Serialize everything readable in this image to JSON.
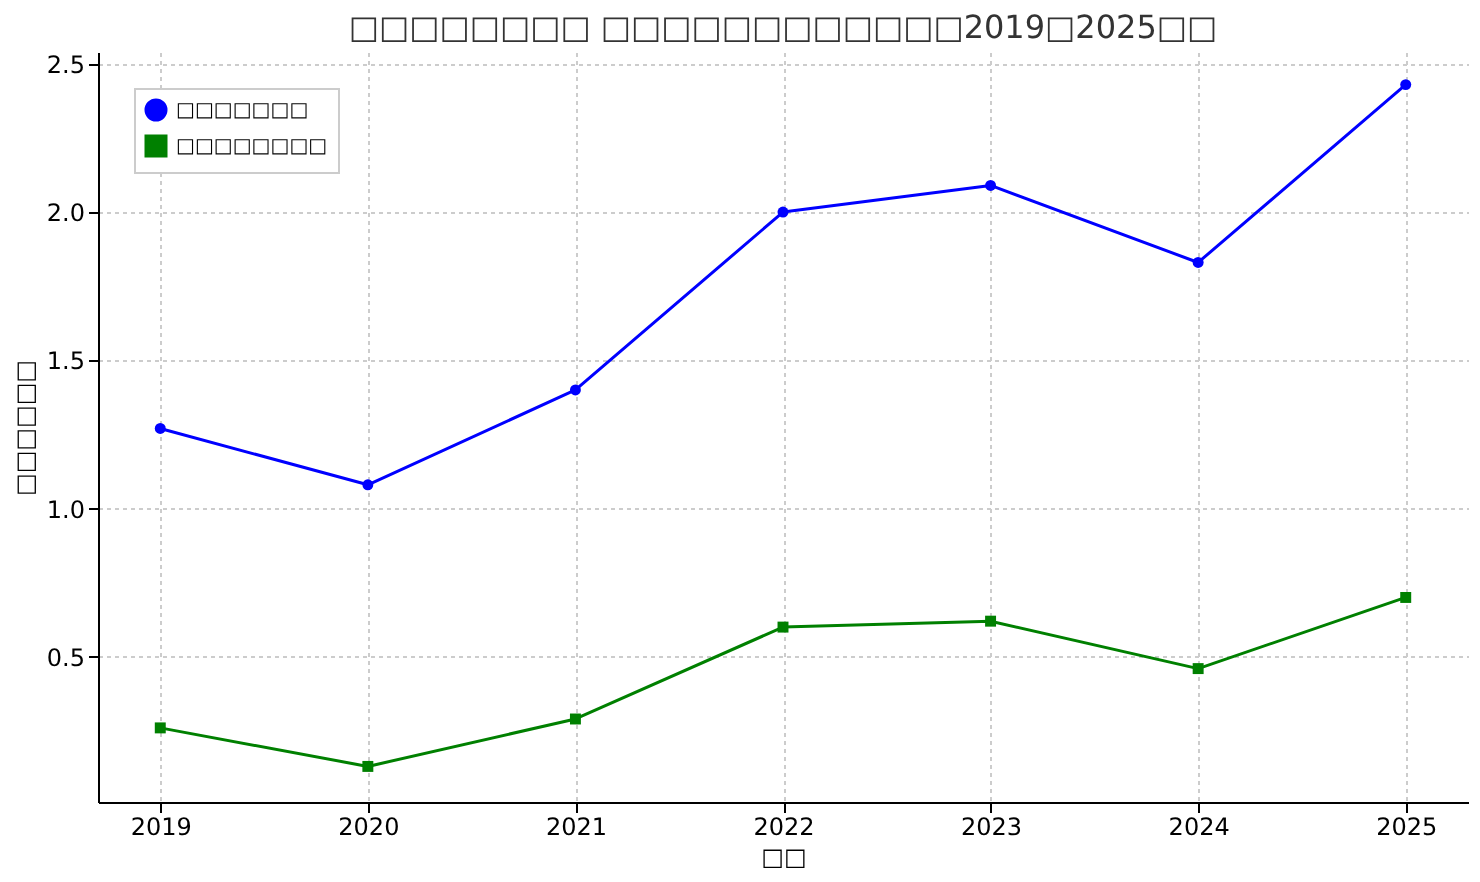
{
  "chart_data": {
    "type": "line",
    "title": "□□□□□□□□ □□□□□□□□□□□□2019□2025□□",
    "xlabel": "□□",
    "ylabel": "□□□□□□",
    "x": [
      2019,
      2020,
      2021,
      2022,
      2023,
      2024,
      2025
    ],
    "series": [
      {
        "name": "□□□□□□□",
        "color": "#0000ff",
        "marker": "circle",
        "values": [
          1.27,
          1.08,
          1.4,
          2.0,
          2.09,
          1.83,
          2.43
        ]
      },
      {
        "name": "□□□□□□□□",
        "color": "#008000",
        "marker": "square",
        "values": [
          0.26,
          0.13,
          0.29,
          0.6,
          0.62,
          0.46,
          0.7
        ]
      }
    ],
    "xlim": [
      2018.7,
      2025.3
    ],
    "xticks": [
      2019,
      2020,
      2021,
      2022,
      2023,
      2024,
      2025
    ],
    "ylim": [
      0.01,
      2.54
    ],
    "yticks": [
      0.5,
      {
        "value": 1,
        "label": "1.0"
      },
      1.5,
      {
        "value": 2,
        "label": "2.0"
      },
      2.5
    ],
    "grid": true,
    "legend": "top left",
    "line_style": "solid"
  }
}
